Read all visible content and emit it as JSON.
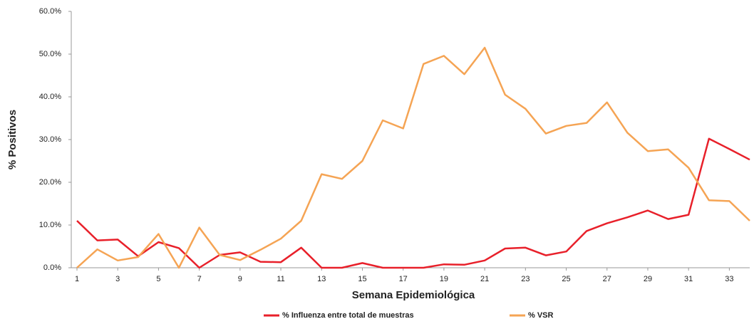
{
  "chart_data": {
    "type": "line",
    "x_label": "Semana Epidemiológica",
    "y_label": "% Positivos",
    "x": [
      1,
      2,
      3,
      4,
      5,
      6,
      7,
      8,
      9,
      10,
      11,
      12,
      13,
      14,
      15,
      16,
      17,
      18,
      19,
      20,
      21,
      22,
      23,
      24,
      25,
      26,
      27,
      28,
      29,
      30,
      31,
      32,
      33,
      34
    ],
    "xlim": [
      1,
      34
    ],
    "xticks": [
      1,
      3,
      5,
      7,
      9,
      11,
      13,
      15,
      17,
      19,
      21,
      23,
      25,
      27,
      29,
      31,
      33
    ],
    "ylim": [
      0,
      60
    ],
    "yticks": [
      {
        "value": 0,
        "label": "0.0%"
      },
      {
        "value": 10,
        "label": "10.0%"
      },
      {
        "value": 20,
        "label": "20.0%"
      },
      {
        "value": 30,
        "label": "30.0%"
      },
      {
        "value": 40,
        "label": "40.0%"
      },
      {
        "value": 50,
        "label": "50.0%"
      },
      {
        "value": 60,
        "label": "60.0%"
      }
    ],
    "grid": false,
    "legend": "bottom",
    "series": [
      {
        "name": "% Influenza entre total de muestras",
        "color": "#e8202a",
        "values": [
          11.0,
          6.4,
          6.6,
          2.7,
          6.0,
          4.6,
          0.0,
          3.0,
          3.6,
          1.4,
          1.3,
          4.7,
          0.0,
          0.0,
          1.1,
          0.0,
          0.0,
          0.0,
          0.8,
          0.7,
          1.7,
          4.5,
          4.7,
          2.9,
          3.8,
          8.6,
          10.4,
          11.8,
          13.4,
          11.4,
          12.4,
          30.2,
          27.8,
          25.3
        ]
      },
      {
        "name": "% VSR",
        "color": "#f5a454",
        "values": [
          0.0,
          4.3,
          1.7,
          2.5,
          7.9,
          0.0,
          9.4,
          3.0,
          1.8,
          4.2,
          6.8,
          11.0,
          21.9,
          20.8,
          25.0,
          34.5,
          32.6,
          47.7,
          49.6,
          45.3,
          51.5,
          40.5,
          37.2,
          31.4,
          33.2,
          33.9,
          38.7,
          31.6,
          27.3,
          27.7,
          23.4,
          15.8,
          15.6,
          11.0
        ]
      }
    ]
  }
}
